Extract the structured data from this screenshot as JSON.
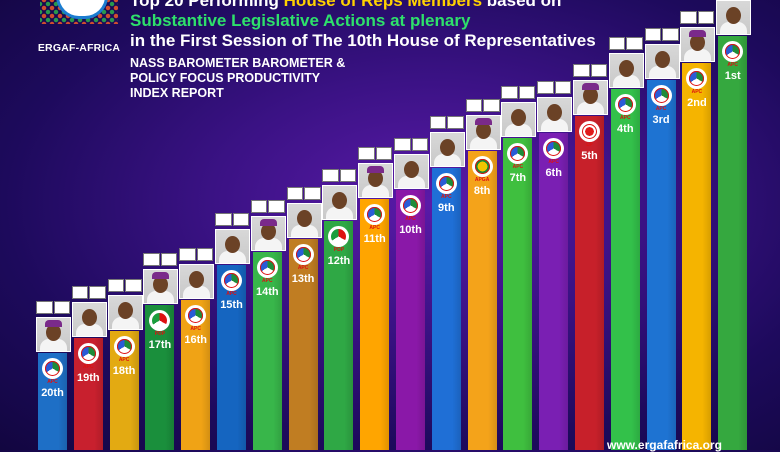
{
  "org": {
    "name": "ERGAF-AFRICA"
  },
  "header": {
    "title_part1": "Top 20 Performing ",
    "title_highlight": "House of Reps Members",
    "title_part2": " based on",
    "line2": "Substantive Legislative Actions at plenary",
    "line3": "in the First Session of The 10th House of Representatives",
    "sub1": "NASS BAROMETER BAROMETER &",
    "sub2": "POLICY FOCUS PRODUCTIVITY",
    "sub3": "INDEX REPORT"
  },
  "website": "www.ergafafrica.org",
  "members": [
    {
      "rank": "20th",
      "party": "APC",
      "color": "#1e6fc6",
      "height": 0.22
    },
    {
      "rank": "19th",
      "party": "APC",
      "color": "#c8202e",
      "height": 0.255
    },
    {
      "rank": "18th",
      "party": "APC",
      "color": "#e3aa12",
      "height": 0.27
    },
    {
      "rank": "17th",
      "party": "PDP",
      "color": "#1a8f3c",
      "height": 0.33
    },
    {
      "rank": "16th",
      "party": "APC",
      "color": "#f0a315",
      "height": 0.34
    },
    {
      "rank": "15th",
      "party": "APC",
      "color": "#1565c0",
      "height": 0.42
    },
    {
      "rank": "14th",
      "party": "APC",
      "color": "#38b64a",
      "height": 0.45
    },
    {
      "rank": "13th",
      "party": "APC",
      "color": "#c07d22",
      "height": 0.48
    },
    {
      "rank": "12th",
      "party": "PDP",
      "color": "#2fa845",
      "height": 0.52
    },
    {
      "rank": "11th",
      "party": "APC",
      "color": "#ffa500",
      "height": 0.57
    },
    {
      "rank": "10th",
      "party": "APC",
      "color": "#8a18a8",
      "height": 0.59
    },
    {
      "rank": "9th",
      "party": "APC",
      "color": "#1f6fd6",
      "height": 0.64
    },
    {
      "rank": "8th",
      "party": "APGA",
      "color": "#f4a31a",
      "height": 0.68
    },
    {
      "rank": "7th",
      "party": "APC",
      "color": "#3fbf3f",
      "height": 0.71
    },
    {
      "rank": "6th",
      "party": "APC",
      "color": "#7a1fb3",
      "height": 0.72
    },
    {
      "rank": "5th",
      "party": "LP",
      "color": "#c7202a",
      "height": 0.76
    },
    {
      "rank": "4th",
      "party": "APC",
      "color": "#33c14a",
      "height": 0.82
    },
    {
      "rank": "3rd",
      "party": "APC",
      "color": "#1e73d2",
      "height": 0.84
    },
    {
      "rank": "2nd",
      "party": "APC",
      "color": "#f5b400",
      "height": 0.88
    },
    {
      "rank": "1st",
      "party": "APC",
      "color": "#35a83f",
      "height": 0.94
    }
  ]
}
